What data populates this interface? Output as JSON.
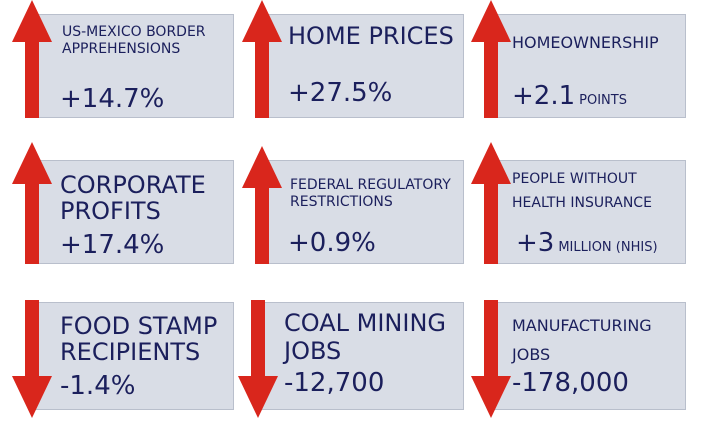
{
  "colors": {
    "arrow": "#d9261c",
    "tile_bg": "#d9dde6",
    "text": "#1b1f5c"
  },
  "tiles": [
    {
      "label_line1": "US-Mexico Border",
      "label_line2": "Apprehensions",
      "value": "+14.7%",
      "unit": "",
      "direction": "up"
    },
    {
      "label_line1": "Home Prices",
      "label_line2": "",
      "value": "+27.5%",
      "unit": "",
      "direction": "up"
    },
    {
      "label_line1": "Homeownership",
      "label_line2": "",
      "value": "+2.1",
      "unit": "points",
      "direction": "up"
    },
    {
      "label_line1": "Corporate",
      "label_line2": "Profits",
      "value": "+17.4%",
      "unit": "",
      "direction": "up"
    },
    {
      "label_line1": "Federal Regulatory",
      "label_line2": "Restrictions",
      "value": "+0.9%",
      "unit": "",
      "direction": "up"
    },
    {
      "label_line1": "People Without",
      "label_line2": "Health Insurance",
      "value": "+3",
      "unit": "million (NHIS)",
      "direction": "up"
    },
    {
      "label_line1": "Food Stamp",
      "label_line2": "Recipients",
      "value": "-1.4%",
      "unit": "",
      "direction": "down"
    },
    {
      "label_line1": "Coal Mining",
      "label_line2": "Jobs",
      "value": "-12,700",
      "unit": "",
      "direction": "down"
    },
    {
      "label_line1": "Manufacturing",
      "label_line2": "Jobs",
      "value": "-178,000",
      "unit": "",
      "direction": "down"
    }
  ]
}
